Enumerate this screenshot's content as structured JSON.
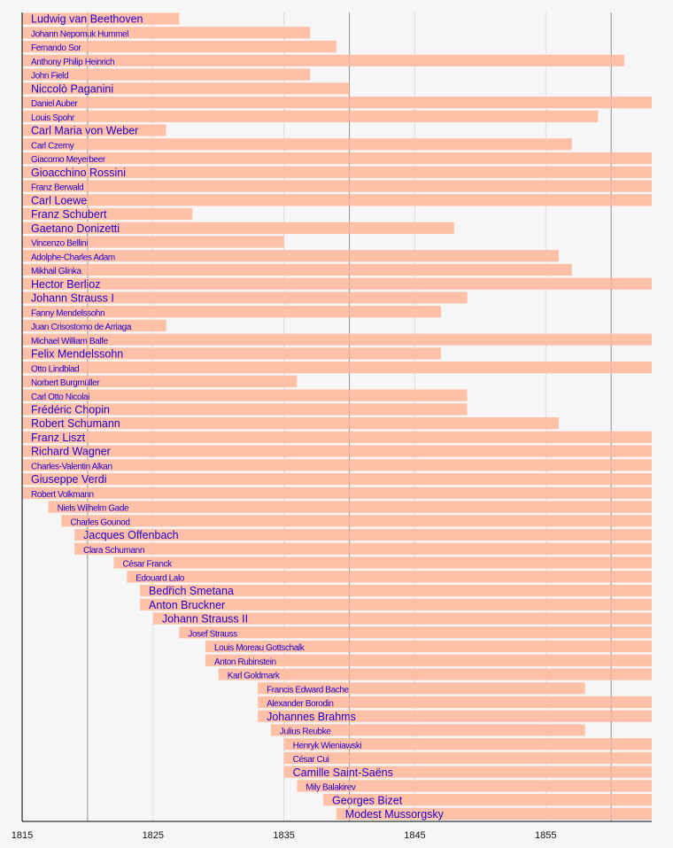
{
  "chart_data": {
    "type": "timeline",
    "title": "",
    "xlabel": "",
    "xlim": [
      1815,
      1863.1
    ],
    "x_ticks": [
      1815,
      1825,
      1835,
      1845,
      1855
    ],
    "major_gridlines": [
      1820,
      1840,
      1860
    ],
    "bar_color": "#ffc0a8",
    "label_color": "#2200cc",
    "rows": [
      {
        "name": "Ludwig van Beethoven",
        "start": 1815,
        "end": 1827,
        "emphasis": true
      },
      {
        "name": "Johann Nepomuk Hummel",
        "start": 1815,
        "end": 1837
      },
      {
        "name": "Fernando Sor",
        "start": 1815,
        "end": 1839
      },
      {
        "name": "Anthony Philip Heinrich",
        "start": 1815,
        "end": 1861
      },
      {
        "name": "John Field",
        "start": 1815,
        "end": 1837
      },
      {
        "name": "Niccolò Paganini",
        "start": 1815,
        "end": 1840,
        "emphasis": true
      },
      {
        "name": "Daniel Auber",
        "start": 1815,
        "end": 1871
      },
      {
        "name": "Louis Spohr",
        "start": 1815,
        "end": 1859
      },
      {
        "name": "Carl Maria von Weber",
        "start": 1815,
        "end": 1826,
        "emphasis": true
      },
      {
        "name": "Carl Czerny",
        "start": 1815,
        "end": 1857
      },
      {
        "name": "Giacomo Meyerbeer",
        "start": 1815,
        "end": 1864
      },
      {
        "name": "Gioacchino Rossini",
        "start": 1815,
        "end": 1868,
        "emphasis": true
      },
      {
        "name": "Franz Berwald",
        "start": 1815,
        "end": 1868
      },
      {
        "name": "Carl Loewe",
        "start": 1815,
        "end": 1869,
        "emphasis": true
      },
      {
        "name": "Franz Schubert",
        "start": 1815,
        "end": 1828,
        "emphasis": true
      },
      {
        "name": "Gaetano Donizetti",
        "start": 1815,
        "end": 1848,
        "emphasis": true
      },
      {
        "name": "Vincenzo Bellini",
        "start": 1815,
        "end": 1835
      },
      {
        "name": "Adolphe-Charles Adam",
        "start": 1815,
        "end": 1856
      },
      {
        "name": "Mikhail Glinka",
        "start": 1815,
        "end": 1857
      },
      {
        "name": "Hector Berlioz",
        "start": 1815,
        "end": 1869,
        "emphasis": true
      },
      {
        "name": "Johann Strauss I",
        "start": 1815,
        "end": 1849,
        "emphasis": true
      },
      {
        "name": "Fanny Mendelssohn",
        "start": 1815,
        "end": 1847
      },
      {
        "name": "Juan Crisostomo de Arriaga",
        "start": 1815,
        "end": 1826
      },
      {
        "name": "Michael William Balfe",
        "start": 1815,
        "end": 1870
      },
      {
        "name": "Felix Mendelssohn",
        "start": 1815,
        "end": 1847,
        "emphasis": true
      },
      {
        "name": "Otto Lindblad",
        "start": 1815,
        "end": 1864
      },
      {
        "name": "Norbert Burgmüller",
        "start": 1815,
        "end": 1836
      },
      {
        "name": "Carl Otto Nicolai",
        "start": 1815,
        "end": 1849
      },
      {
        "name": "Frédéric Chopin",
        "start": 1815,
        "end": 1849,
        "emphasis": true
      },
      {
        "name": "Robert Schumann",
        "start": 1815,
        "end": 1856,
        "emphasis": true
      },
      {
        "name": "Franz Liszt",
        "start": 1815,
        "end": 1886,
        "emphasis": true
      },
      {
        "name": "Richard Wagner",
        "start": 1815,
        "end": 1883,
        "emphasis": true
      },
      {
        "name": "Charles-Valentin Alkan",
        "start": 1815,
        "end": 1888
      },
      {
        "name": "Giuseppe Verdi",
        "start": 1815,
        "end": 1901,
        "emphasis": true
      },
      {
        "name": "Robert Volkmann",
        "start": 1815,
        "end": 1883
      },
      {
        "name": "Niels Wilhelm Gade",
        "start": 1817,
        "end": 1890
      },
      {
        "name": "Charles Gounod",
        "start": 1818,
        "end": 1893
      },
      {
        "name": "Jacques Offenbach",
        "start": 1819,
        "end": 1880,
        "emphasis": true
      },
      {
        "name": "Clara Schumann",
        "start": 1819,
        "end": 1896
      },
      {
        "name": "César Franck",
        "start": 1822,
        "end": 1890
      },
      {
        "name": "Edouard Lalo",
        "start": 1823,
        "end": 1892
      },
      {
        "name": "Bedřich Smetana",
        "start": 1824,
        "end": 1884,
        "emphasis": true
      },
      {
        "name": "Anton Bruckner",
        "start": 1824,
        "end": 1896,
        "emphasis": true
      },
      {
        "name": "Johann Strauss II",
        "start": 1825,
        "end": 1899,
        "emphasis": true
      },
      {
        "name": "Josef Strauss",
        "start": 1827,
        "end": 1870
      },
      {
        "name": "Louis Moreau Gottschalk",
        "start": 1829,
        "end": 1869
      },
      {
        "name": "Anton Rubinstein",
        "start": 1829,
        "end": 1894
      },
      {
        "name": "Karl Goldmark",
        "start": 1830,
        "end": 1915
      },
      {
        "name": "Francis Edward Bache",
        "start": 1833,
        "end": 1858
      },
      {
        "name": "Alexander Borodin",
        "start": 1833,
        "end": 1887
      },
      {
        "name": "Johannes Brahms",
        "start": 1833,
        "end": 1897,
        "emphasis": true
      },
      {
        "name": "Julius Reubke",
        "start": 1834,
        "end": 1858
      },
      {
        "name": "Henryk Wieniawski",
        "start": 1835,
        "end": 1880
      },
      {
        "name": "César Cui",
        "start": 1835,
        "end": 1918
      },
      {
        "name": "Camille Saint-Saëns",
        "start": 1835,
        "end": 1921,
        "emphasis": true
      },
      {
        "name": "Mily Balakirev",
        "start": 1836,
        "end": 1910
      },
      {
        "name": "Georges Bizet",
        "start": 1838,
        "end": 1875,
        "emphasis": true
      },
      {
        "name": "Modest Mussorgsky",
        "start": 1839,
        "end": 1881,
        "emphasis": true
      }
    ]
  }
}
